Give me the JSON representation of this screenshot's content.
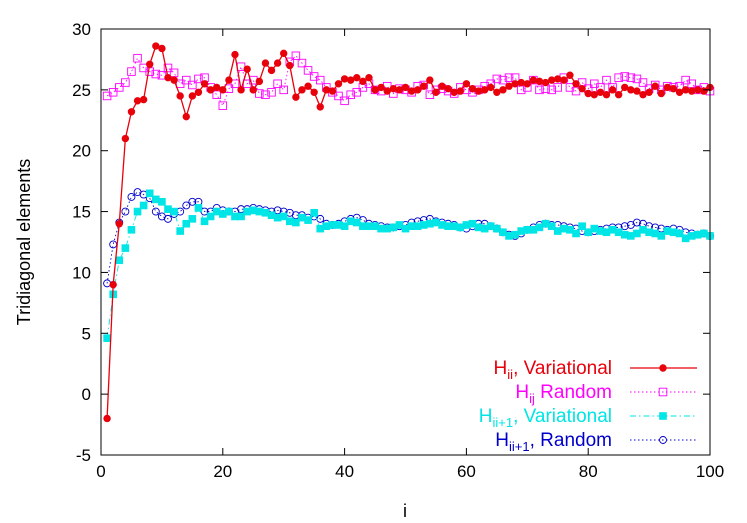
{
  "chart_data": {
    "type": "line",
    "xlabel": "i",
    "ylabel": "Tridiagonal elements",
    "xlim": [
      0,
      100
    ],
    "ylim": [
      -5,
      30
    ],
    "x_ticks": [
      0,
      20,
      40,
      60,
      80,
      100
    ],
    "y_ticks": [
      -5,
      0,
      5,
      10,
      15,
      20,
      25,
      30
    ],
    "grid": false,
    "legend_position": "bottom-right",
    "series": [
      {
        "name": "H_ii, Variational",
        "label_main": "H",
        "label_sub": "ii",
        "label_rest": ", Variational",
        "color": "#e8000b",
        "marker": "filled-circle",
        "line": "solid",
        "x": [
          1,
          2,
          3,
          4,
          5,
          6,
          7,
          8,
          9,
          10,
          11,
          12,
          13,
          14,
          15,
          16,
          17,
          18,
          19,
          20,
          21,
          22,
          23,
          24,
          25,
          26,
          27,
          28,
          29,
          30,
          31,
          32,
          33,
          34,
          35,
          36,
          37,
          38,
          39,
          40,
          41,
          42,
          43,
          44,
          45,
          46,
          47,
          48,
          49,
          50,
          51,
          52,
          53,
          54,
          55,
          56,
          57,
          58,
          59,
          60,
          61,
          62,
          63,
          64,
          65,
          66,
          67,
          68,
          69,
          70,
          71,
          72,
          73,
          74,
          75,
          76,
          77,
          78,
          79,
          80,
          81,
          82,
          83,
          84,
          85,
          86,
          87,
          88,
          89,
          90,
          91,
          92,
          93,
          94,
          95,
          96,
          97,
          98,
          99,
          100
        ],
        "values": [
          -2.0,
          9.0,
          14.0,
          21.0,
          23.2,
          24.1,
          24.2,
          27.1,
          28.6,
          28.4,
          26.0,
          25.8,
          24.5,
          22.8,
          24.5,
          24.8,
          25.5,
          25.0,
          25.2,
          25.0,
          25.8,
          27.9,
          25.0,
          26.7,
          25.0,
          25.7,
          27.2,
          26.6,
          27.2,
          28.0,
          27.0,
          24.4,
          25.0,
          25.3,
          24.8,
          23.6,
          25.0,
          24.9,
          25.5,
          25.9,
          25.8,
          26.0,
          25.7,
          26.0,
          25.0,
          25.2,
          24.9,
          25.1,
          25.0,
          25.2,
          24.9,
          25.0,
          25.3,
          25.8,
          24.8,
          25.3,
          25.1,
          24.8,
          24.9,
          25.5,
          25.1,
          24.9,
          25.0,
          25.2,
          24.8,
          25.0,
          25.3,
          25.5,
          25.6,
          25.5,
          25.8,
          25.7,
          25.6,
          25.8,
          25.9,
          25.8,
          26.2,
          25.5,
          25.1,
          24.7,
          24.6,
          24.8,
          24.6,
          25.0,
          24.6,
          25.2,
          25.0,
          24.9,
          24.6,
          24.8,
          25.3,
          24.7,
          25.2,
          25.1,
          24.8,
          25.0,
          24.9,
          25.0,
          24.9,
          25.2
        ]
      },
      {
        "name": "H_ij Random",
        "label_main": "H",
        "label_sub": "ij",
        "label_rest": " Random",
        "color": "#ff00ff",
        "marker": "open-square",
        "line": "dotted",
        "x": [
          1,
          2,
          3,
          4,
          5,
          6,
          7,
          8,
          9,
          10,
          11,
          12,
          13,
          14,
          15,
          16,
          17,
          18,
          19,
          20,
          21,
          22,
          23,
          24,
          25,
          26,
          27,
          28,
          29,
          30,
          31,
          32,
          33,
          34,
          35,
          36,
          37,
          38,
          39,
          40,
          41,
          42,
          43,
          44,
          45,
          46,
          47,
          48,
          49,
          50,
          51,
          52,
          53,
          54,
          55,
          56,
          57,
          58,
          59,
          60,
          61,
          62,
          63,
          64,
          65,
          66,
          67,
          68,
          69,
          70,
          71,
          72,
          73,
          74,
          75,
          76,
          77,
          78,
          79,
          80,
          81,
          82,
          83,
          84,
          85,
          86,
          87,
          88,
          89,
          90,
          91,
          92,
          93,
          94,
          95,
          96,
          97,
          98,
          99,
          100
        ],
        "values": [
          24.5,
          24.8,
          25.2,
          25.6,
          26.5,
          27.6,
          26.8,
          26.5,
          26.3,
          26.2,
          26.8,
          26.4,
          25.5,
          25.8,
          25.4,
          25.9,
          26.0,
          25.2,
          24.6,
          23.7,
          25.1,
          25.5,
          26.9,
          25.5,
          25.8,
          24.7,
          24.6,
          24.8,
          25.5,
          25.0,
          27.3,
          27.8,
          27.2,
          26.6,
          26.1,
          25.8,
          25.2,
          24.8,
          24.5,
          24.1,
          24.6,
          24.8,
          25.2,
          25.5,
          25.0,
          24.9,
          25.3,
          24.7,
          25.1,
          25.0,
          24.8,
          25.3,
          25.4,
          24.6,
          25.0,
          25.1,
          24.9,
          24.7,
          25.2,
          25.0,
          24.8,
          25.0,
          25.3,
          25.5,
          25.9,
          25.8,
          26.0,
          26.0,
          25.0,
          25.2,
          25.8,
          25.0,
          25.1,
          25.0,
          25.2,
          26.0,
          25.2,
          24.9,
          25.6,
          25.1,
          25.5,
          25.2,
          25.8,
          25.2,
          26.0,
          26.1,
          26.0,
          25.9,
          25.6,
          25.1,
          25.4,
          25.0,
          25.3,
          25.2,
          25.3,
          25.8,
          25.5,
          25.0,
          25.2,
          24.9
        ]
      },
      {
        "name": "H_ii+1, Variational",
        "label_main": "H",
        "label_sub": "ii+1",
        "label_rest": ", Variational",
        "color": "#00e5e5",
        "marker": "filled-square",
        "line": "dashdot",
        "x": [
          1,
          2,
          3,
          4,
          5,
          6,
          7,
          8,
          9,
          10,
          11,
          12,
          13,
          14,
          15,
          16,
          17,
          18,
          19,
          20,
          21,
          22,
          23,
          24,
          25,
          26,
          27,
          28,
          29,
          30,
          31,
          32,
          33,
          34,
          35,
          36,
          37,
          38,
          39,
          40,
          41,
          42,
          43,
          44,
          45,
          46,
          47,
          48,
          49,
          50,
          51,
          52,
          53,
          54,
          55,
          56,
          57,
          58,
          59,
          60,
          61,
          62,
          63,
          64,
          65,
          66,
          67,
          68,
          69,
          70,
          71,
          72,
          73,
          74,
          75,
          76,
          77,
          78,
          79,
          80,
          81,
          82,
          83,
          84,
          85,
          86,
          87,
          88,
          89,
          90,
          91,
          92,
          93,
          94,
          95,
          96,
          97,
          98,
          99,
          100
        ],
        "values": [
          4.6,
          8.2,
          11.0,
          12.0,
          13.5,
          15.0,
          15.5,
          16.5,
          16.0,
          15.8,
          15.2,
          15.0,
          13.4,
          14.0,
          14.4,
          15.3,
          14.2,
          14.6,
          15.0,
          14.8,
          15.0,
          14.6,
          14.6,
          15.0,
          15.1,
          15.0,
          14.9,
          14.7,
          14.5,
          14.6,
          14.2,
          14.1,
          14.5,
          14.3,
          14.9,
          13.6,
          13.8,
          13.9,
          13.9,
          13.8,
          14.2,
          14.1,
          13.8,
          13.8,
          13.8,
          13.6,
          13.6,
          13.7,
          13.9,
          13.6,
          13.8,
          13.8,
          13.9,
          14.0,
          14.1,
          13.9,
          13.8,
          13.8,
          13.7,
          13.9,
          14.0,
          13.7,
          13.6,
          13.8,
          13.6,
          13.3,
          13.0,
          13.1,
          13.4,
          13.5,
          13.5,
          13.7,
          14.0,
          13.8,
          13.4,
          13.6,
          13.5,
          13.2,
          13.8,
          13.3,
          13.6,
          13.4,
          13.3,
          13.5,
          13.3,
          13.1,
          13.0,
          13.2,
          13.5,
          13.3,
          13.2,
          13.0,
          13.4,
          13.3,
          13.2,
          12.8,
          13.0,
          13.1,
          13.2,
          13.0
        ]
      },
      {
        "name": "H_ii+1, Random",
        "label_main": "H",
        "label_sub": "ii+1",
        "label_rest": ", Random",
        "color": "#0000cc",
        "marker": "open-circle",
        "line": "dotted",
        "x": [
          1,
          2,
          3,
          4,
          5,
          6,
          7,
          8,
          9,
          10,
          11,
          12,
          13,
          14,
          15,
          16,
          17,
          18,
          19,
          20,
          21,
          22,
          23,
          24,
          25,
          26,
          27,
          28,
          29,
          30,
          31,
          32,
          33,
          34,
          35,
          36,
          37,
          38,
          39,
          40,
          41,
          42,
          43,
          44,
          45,
          46,
          47,
          48,
          49,
          50,
          51,
          52,
          53,
          54,
          55,
          56,
          57,
          58,
          59,
          60,
          61,
          62,
          63,
          64,
          65,
          66,
          67,
          68,
          69,
          70,
          71,
          72,
          73,
          74,
          75,
          76,
          77,
          78,
          79,
          80,
          81,
          82,
          83,
          84,
          85,
          86,
          87,
          88,
          89,
          90,
          91,
          92,
          93,
          94,
          95,
          96,
          97,
          98,
          99,
          100
        ],
        "values": [
          9.1,
          12.3,
          14.1,
          15.0,
          16.2,
          16.6,
          16.4,
          16.1,
          15.0,
          14.6,
          14.4,
          14.8,
          15.0,
          15.5,
          15.8,
          15.8,
          15.0,
          15.0,
          15.3,
          15.1,
          15.0,
          15.0,
          15.2,
          15.2,
          15.3,
          15.2,
          15.1,
          15.0,
          15.1,
          15.0,
          14.9,
          14.7,
          14.7,
          14.5,
          14.6,
          14.4,
          14.0,
          13.9,
          14.0,
          14.2,
          14.4,
          14.5,
          14.3,
          14.0,
          13.9,
          13.8,
          13.7,
          13.7,
          13.8,
          13.9,
          14.1,
          14.2,
          14.3,
          14.4,
          14.2,
          14.1,
          14.0,
          13.9,
          13.7,
          13.6,
          13.8,
          14.0,
          14.0,
          13.8,
          13.6,
          13.3,
          13.1,
          13.0,
          13.2,
          13.5,
          13.7,
          13.9,
          14.0,
          13.9,
          13.9,
          13.8,
          13.7,
          13.6,
          13.4,
          13.3,
          13.4,
          13.5,
          13.6,
          13.7,
          13.7,
          13.8,
          13.9,
          14.1,
          14.0,
          13.8,
          13.7,
          13.6,
          13.5,
          13.6,
          13.5,
          13.3,
          13.2,
          13.1,
          13.2,
          13.0
        ]
      }
    ]
  }
}
